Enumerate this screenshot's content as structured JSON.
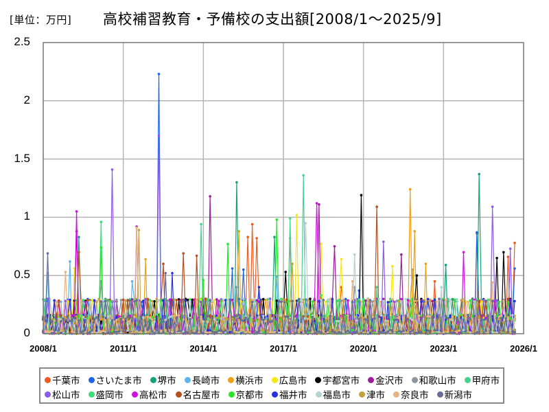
{
  "header": {
    "unit": "[単位：万円]",
    "title": "高校補習教育・予備校の支出額[2008/1～2025/9]"
  },
  "chart_data": {
    "type": "line",
    "title": "高校補習教育・予備校の支出額[2008/1～2025/9]",
    "unit_label": "[単位：万円]",
    "xlabel": "",
    "ylabel": "",
    "ylim": [
      0,
      2.5
    ],
    "yticks": [
      "0",
      "0.5",
      "1",
      "1.5",
      "2",
      "2.5"
    ],
    "xlim": [
      "2008/1",
      "2026/1"
    ],
    "xticks": [
      "2008/1",
      "2011/1",
      "2014/1",
      "2017/1",
      "2020/1",
      "2023/1",
      "2026/1"
    ],
    "grid": true,
    "legend_position": "bottom",
    "series": [
      {
        "name": "千葉市",
        "color": "#f05a1e",
        "peaks": [
          [
            "2015/9",
            0.83
          ],
          [
            "2015/11",
            0.94
          ],
          [
            "2016/1",
            0.82
          ],
          [
            "2019/3",
            0.4
          ],
          [
            "2022/9",
            0.45
          ],
          [
            "2024/4",
            0.86
          ],
          [
            "2025/6",
            0.66
          ],
          [
            "2025/9",
            0.78
          ]
        ]
      },
      {
        "name": "さいたま市",
        "color": "#1e64e6",
        "peaks": [
          [
            "2012/5",
            2.23
          ],
          [
            "2015/2",
            0.56
          ],
          [
            "2015/7",
            0.55
          ],
          [
            "2019/11",
            0.37
          ],
          [
            "2024/4",
            0.87
          ],
          [
            "2025/9",
            0.56
          ]
        ]
      },
      {
        "name": "堺市",
        "color": "#14a078",
        "peaks": [
          [
            "2009/5",
            0.83
          ],
          [
            "2015/4",
            1.3
          ],
          [
            "2016/9",
            0.83
          ],
          [
            "2023/2",
            0.59
          ],
          [
            "2024/5",
            1.37
          ]
        ]
      },
      {
        "name": "長崎市",
        "color": "#5ab4f0",
        "peaks": [
          [
            "2008/3",
            0.52
          ],
          [
            "2009/1",
            0.62
          ],
          [
            "2011/5",
            0.45
          ],
          [
            "2016/10",
            0.49
          ],
          [
            "2022/12",
            0.3
          ]
        ]
      },
      {
        "name": "横浜市",
        "color": "#f0a014",
        "peaks": [
          [
            "2011/11",
            0.64
          ],
          [
            "2015/5",
            0.88
          ],
          [
            "2021/10",
            1.24
          ],
          [
            "2021/12",
            0.88
          ],
          [
            "2022/5",
            0.6
          ]
        ]
      },
      {
        "name": "広島市",
        "color": "#f5e614",
        "peaks": [
          [
            "2009/3",
            0.56
          ],
          [
            "2017/7",
            1.02
          ],
          [
            "2018/6",
            0.77
          ],
          [
            "2019/3",
            0.64
          ],
          [
            "2021/2",
            0.58
          ]
        ]
      },
      {
        "name": "宇都宮市",
        "color": "#000000",
        "peaks": [
          [
            "2008/10",
            0.1
          ],
          [
            "2017/2",
            0.53
          ],
          [
            "2019/12",
            1.19
          ],
          [
            "2022/1",
            0.5
          ],
          [
            "2025/1",
            0.65
          ],
          [
            "2025/4",
            0.7
          ]
        ]
      },
      {
        "name": "金沢市",
        "color": "#9b1e9b",
        "peaks": [
          [
            "2009/4",
            0.88
          ],
          [
            "2011/7",
            0.92
          ],
          [
            "2014/4",
            1.18
          ],
          [
            "2018/5",
            1.11
          ],
          [
            "2018/12",
            0.75
          ],
          [
            "2021/6",
            0.68
          ]
        ]
      },
      {
        "name": "和歌山市",
        "color": "#8c96a0",
        "peaks": [
          [
            "2010/3",
            0.45
          ],
          [
            "2015/4",
            0.4
          ],
          [
            "2017/4",
            0.82
          ],
          [
            "2019/9",
            0.4
          ]
        ]
      },
      {
        "name": "甲府市",
        "color": "#46d28c",
        "peaks": [
          [
            "2013/12",
            0.94
          ],
          [
            "2017/10",
            1.36
          ],
          [
            "2020/7",
            0.4
          ]
        ]
      },
      {
        "name": "松山市",
        "color": "#8c5ae6",
        "peaks": [
          [
            "2010/8",
            1.41
          ],
          [
            "2012/5",
            1.7
          ],
          [
            "2020/10",
            0.79
          ],
          [
            "2024/11",
            1.09
          ],
          [
            "2025/7",
            0.73
          ]
        ]
      },
      {
        "name": "盛岡市",
        "color": "#3cdc78",
        "peaks": [
          [
            "2010/3",
            0.96
          ],
          [
            "2017/4",
            0.99
          ],
          [
            "2018/6",
            0.33
          ]
        ]
      },
      {
        "name": "高松市",
        "color": "#c814dc",
        "peaks": [
          [
            "2009/4",
            1.05
          ],
          [
            "2018/4",
            1.12
          ],
          [
            "2023/10",
            0.7
          ]
        ]
      },
      {
        "name": "名古屋市",
        "color": "#b4501e",
        "peaks": [
          [
            "2009/5",
            0.7
          ],
          [
            "2012/7",
            0.6
          ],
          [
            "2013/4",
            0.69
          ],
          [
            "2013/10",
            0.67
          ],
          [
            "2020/7",
            1.09
          ]
        ]
      },
      {
        "name": "京都市",
        "color": "#28e628",
        "peaks": [
          [
            "2010/3",
            0.74
          ],
          [
            "2014/1",
            0.46
          ],
          [
            "2014/12",
            0.77
          ],
          [
            "2016/10",
            0.98
          ]
        ]
      },
      {
        "name": "福井市",
        "color": "#2832dc",
        "peaks": [
          [
            "2012/11",
            0.52
          ],
          [
            "2016/2",
            0.4
          ]
        ]
      },
      {
        "name": "福島市",
        "color": "#b4d2d2",
        "peaks": [
          [
            "2008/4",
            0.3
          ],
          [
            "2017/11",
            0.95
          ],
          [
            "2019/9",
            0.68
          ],
          [
            "2022/12",
            0.4
          ]
        ]
      },
      {
        "name": "津市",
        "color": "#c8a03c",
        "peaks": [
          [
            "2011/8",
            0.89
          ],
          [
            "2017/5",
            0.6
          ],
          [
            "2021/11",
            0.55
          ]
        ]
      },
      {
        "name": "奈良市",
        "color": "#e6b482",
        "peaks": [
          [
            "2008/11",
            0.53
          ],
          [
            "2011/7",
            0.91
          ],
          [
            "2019/8",
            0.45
          ],
          [
            "2024/11",
            0.44
          ]
        ]
      },
      {
        "name": "新潟市",
        "color": "#646e96",
        "peaks": [
          [
            "2008/3",
            0.69
          ],
          [
            "2012/8",
            0.52
          ],
          [
            "2024/2",
            0.3
          ]
        ]
      }
    ]
  },
  "legend": {
    "rows": [
      [
        "千葉市",
        "さいたま市",
        "堺市",
        "長崎市",
        "横浜市",
        "広島市",
        "宇都宮市",
        "金沢市",
        "和歌山市",
        "甲府市"
      ],
      [
        "松山市",
        "盛岡市",
        "高松市",
        "名古屋市",
        "京都市",
        "福井市",
        "福島市",
        "津市",
        "奈良市",
        "新潟市"
      ]
    ]
  }
}
